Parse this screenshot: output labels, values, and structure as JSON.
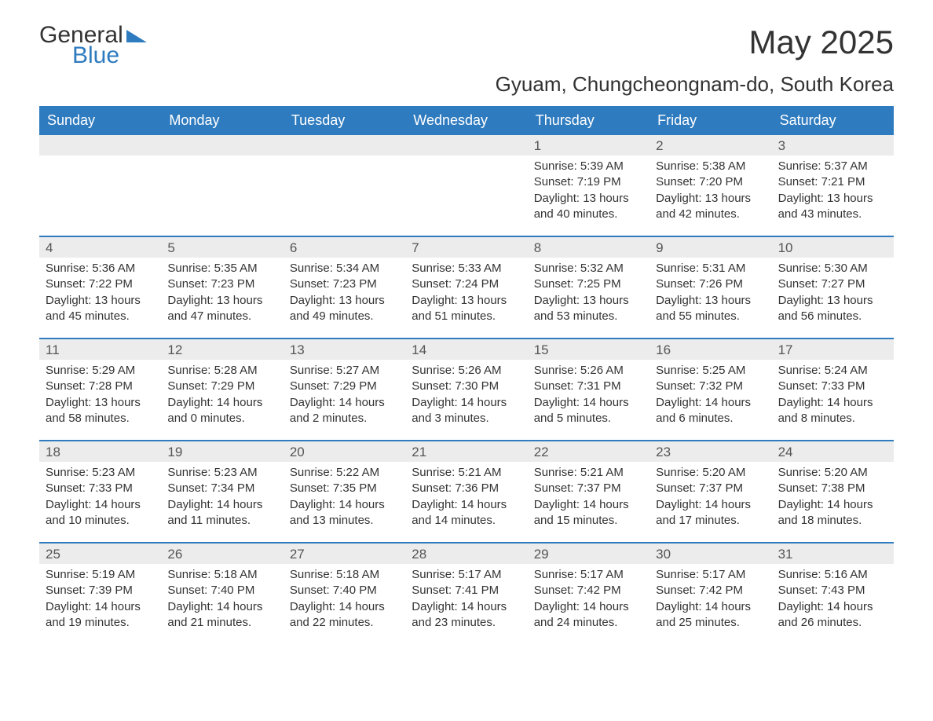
{
  "brand": {
    "name1": "General",
    "name2": "Blue",
    "text_color": "#333333",
    "accent_color": "#2f7bbf"
  },
  "header": {
    "title": "May 2025",
    "subtitle": "Gyuam, Chungcheongnam-do, South Korea"
  },
  "styling": {
    "header_bg": "#2f7bbf",
    "header_text": "#ffffff",
    "daynum_bg": "#ececec",
    "row_border": "#2f7bbf",
    "body_text": "#333333",
    "font_family": "Arial",
    "title_fontsize": 42,
    "subtitle_fontsize": 26,
    "dayhead_fontsize": 18,
    "cell_fontsize": 15
  },
  "day_names": [
    "Sunday",
    "Monday",
    "Tuesday",
    "Wednesday",
    "Thursday",
    "Friday",
    "Saturday"
  ],
  "weeks": [
    [
      {
        "n": "",
        "sr": "",
        "ss": "",
        "dl": ""
      },
      {
        "n": "",
        "sr": "",
        "ss": "",
        "dl": ""
      },
      {
        "n": "",
        "sr": "",
        "ss": "",
        "dl": ""
      },
      {
        "n": "",
        "sr": "",
        "ss": "",
        "dl": ""
      },
      {
        "n": "1",
        "sr": "Sunrise: 5:39 AM",
        "ss": "Sunset: 7:19 PM",
        "dl": "Daylight: 13 hours and 40 minutes."
      },
      {
        "n": "2",
        "sr": "Sunrise: 5:38 AM",
        "ss": "Sunset: 7:20 PM",
        "dl": "Daylight: 13 hours and 42 minutes."
      },
      {
        "n": "3",
        "sr": "Sunrise: 5:37 AM",
        "ss": "Sunset: 7:21 PM",
        "dl": "Daylight: 13 hours and 43 minutes."
      }
    ],
    [
      {
        "n": "4",
        "sr": "Sunrise: 5:36 AM",
        "ss": "Sunset: 7:22 PM",
        "dl": "Daylight: 13 hours and 45 minutes."
      },
      {
        "n": "5",
        "sr": "Sunrise: 5:35 AM",
        "ss": "Sunset: 7:23 PM",
        "dl": "Daylight: 13 hours and 47 minutes."
      },
      {
        "n": "6",
        "sr": "Sunrise: 5:34 AM",
        "ss": "Sunset: 7:23 PM",
        "dl": "Daylight: 13 hours and 49 minutes."
      },
      {
        "n": "7",
        "sr": "Sunrise: 5:33 AM",
        "ss": "Sunset: 7:24 PM",
        "dl": "Daylight: 13 hours and 51 minutes."
      },
      {
        "n": "8",
        "sr": "Sunrise: 5:32 AM",
        "ss": "Sunset: 7:25 PM",
        "dl": "Daylight: 13 hours and 53 minutes."
      },
      {
        "n": "9",
        "sr": "Sunrise: 5:31 AM",
        "ss": "Sunset: 7:26 PM",
        "dl": "Daylight: 13 hours and 55 minutes."
      },
      {
        "n": "10",
        "sr": "Sunrise: 5:30 AM",
        "ss": "Sunset: 7:27 PM",
        "dl": "Daylight: 13 hours and 56 minutes."
      }
    ],
    [
      {
        "n": "11",
        "sr": "Sunrise: 5:29 AM",
        "ss": "Sunset: 7:28 PM",
        "dl": "Daylight: 13 hours and 58 minutes."
      },
      {
        "n": "12",
        "sr": "Sunrise: 5:28 AM",
        "ss": "Sunset: 7:29 PM",
        "dl": "Daylight: 14 hours and 0 minutes."
      },
      {
        "n": "13",
        "sr": "Sunrise: 5:27 AM",
        "ss": "Sunset: 7:29 PM",
        "dl": "Daylight: 14 hours and 2 minutes."
      },
      {
        "n": "14",
        "sr": "Sunrise: 5:26 AM",
        "ss": "Sunset: 7:30 PM",
        "dl": "Daylight: 14 hours and 3 minutes."
      },
      {
        "n": "15",
        "sr": "Sunrise: 5:26 AM",
        "ss": "Sunset: 7:31 PM",
        "dl": "Daylight: 14 hours and 5 minutes."
      },
      {
        "n": "16",
        "sr": "Sunrise: 5:25 AM",
        "ss": "Sunset: 7:32 PM",
        "dl": "Daylight: 14 hours and 6 minutes."
      },
      {
        "n": "17",
        "sr": "Sunrise: 5:24 AM",
        "ss": "Sunset: 7:33 PM",
        "dl": "Daylight: 14 hours and 8 minutes."
      }
    ],
    [
      {
        "n": "18",
        "sr": "Sunrise: 5:23 AM",
        "ss": "Sunset: 7:33 PM",
        "dl": "Daylight: 14 hours and 10 minutes."
      },
      {
        "n": "19",
        "sr": "Sunrise: 5:23 AM",
        "ss": "Sunset: 7:34 PM",
        "dl": "Daylight: 14 hours and 11 minutes."
      },
      {
        "n": "20",
        "sr": "Sunrise: 5:22 AM",
        "ss": "Sunset: 7:35 PM",
        "dl": "Daylight: 14 hours and 13 minutes."
      },
      {
        "n": "21",
        "sr": "Sunrise: 5:21 AM",
        "ss": "Sunset: 7:36 PM",
        "dl": "Daylight: 14 hours and 14 minutes."
      },
      {
        "n": "22",
        "sr": "Sunrise: 5:21 AM",
        "ss": "Sunset: 7:37 PM",
        "dl": "Daylight: 14 hours and 15 minutes."
      },
      {
        "n": "23",
        "sr": "Sunrise: 5:20 AM",
        "ss": "Sunset: 7:37 PM",
        "dl": "Daylight: 14 hours and 17 minutes."
      },
      {
        "n": "24",
        "sr": "Sunrise: 5:20 AM",
        "ss": "Sunset: 7:38 PM",
        "dl": "Daylight: 14 hours and 18 minutes."
      }
    ],
    [
      {
        "n": "25",
        "sr": "Sunrise: 5:19 AM",
        "ss": "Sunset: 7:39 PM",
        "dl": "Daylight: 14 hours and 19 minutes."
      },
      {
        "n": "26",
        "sr": "Sunrise: 5:18 AM",
        "ss": "Sunset: 7:40 PM",
        "dl": "Daylight: 14 hours and 21 minutes."
      },
      {
        "n": "27",
        "sr": "Sunrise: 5:18 AM",
        "ss": "Sunset: 7:40 PM",
        "dl": "Daylight: 14 hours and 22 minutes."
      },
      {
        "n": "28",
        "sr": "Sunrise: 5:17 AM",
        "ss": "Sunset: 7:41 PM",
        "dl": "Daylight: 14 hours and 23 minutes."
      },
      {
        "n": "29",
        "sr": "Sunrise: 5:17 AM",
        "ss": "Sunset: 7:42 PM",
        "dl": "Daylight: 14 hours and 24 minutes."
      },
      {
        "n": "30",
        "sr": "Sunrise: 5:17 AM",
        "ss": "Sunset: 7:42 PM",
        "dl": "Daylight: 14 hours and 25 minutes."
      },
      {
        "n": "31",
        "sr": "Sunrise: 5:16 AM",
        "ss": "Sunset: 7:43 PM",
        "dl": "Daylight: 14 hours and 26 minutes."
      }
    ]
  ]
}
